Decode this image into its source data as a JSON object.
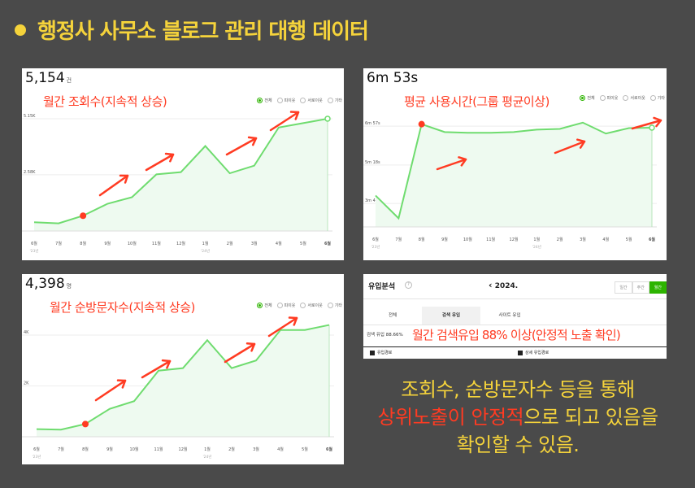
{
  "title": "행정사 사무소 블로그 관리 대행 데이터",
  "legend": [
    "전체",
    "피이웃",
    "서로이웃",
    "기타"
  ],
  "months": [
    "6월",
    "7월",
    "8월",
    "9월",
    "10월",
    "11월",
    "12월",
    "1월",
    "2월",
    "3월",
    "4월",
    "5월",
    "6월"
  ],
  "year_marks": {
    "first": "'23년",
    "second": "'24년"
  },
  "panels": {
    "views": {
      "value": "5,154",
      "unit": "건",
      "caption": "월간 조회수(지속적 상승)",
      "yticks": [
        "5.15K",
        "2.58K"
      ]
    },
    "avg_time": {
      "value": "6m 53s",
      "caption": "평균 사용시간(그룹 평균이상)",
      "yticks": [
        "6m 57s",
        "5m 18s",
        "3m 40s"
      ]
    },
    "visitors": {
      "value": "4,398",
      "unit": "명",
      "caption": "월간 순방문자수(지속적 상승)",
      "yticks": [
        "4K",
        "2K"
      ]
    },
    "traffic": {
      "title": "유입분석",
      "help": "?",
      "year": "2024.",
      "period_buttons": [
        "일간",
        "주간",
        "월간"
      ],
      "tabs": [
        "전체",
        "검색 유입",
        "사이트 유입"
      ],
      "summary": "검색 유입 88.66%",
      "caption": "월간 검색유입 88% 이상(안정적 노출 확인)",
      "footer": [
        "유입경로",
        "상세 유입경로"
      ]
    }
  },
  "chart_data": [
    {
      "type": "line",
      "title": "",
      "categories": [
        "6월",
        "7월",
        "8월",
        "9월",
        "10월",
        "11월",
        "12월",
        "1월",
        "2월",
        "3월",
        "4월",
        "5월",
        "6월"
      ],
      "series": [
        {
          "values": [
            400,
            350,
            700,
            1250,
            1550,
            2600,
            2700,
            3900,
            2650,
            3000,
            4750,
            4950,
            5154
          ]
        }
      ],
      "ylim": [
        0,
        5600
      ],
      "ytick_values": [
        5154,
        2580
      ],
      "color": "#6fdc6f"
    },
    {
      "type": "line",
      "title": "",
      "categories": [
        "6월",
        "7월",
        "8월",
        "9월",
        "10월",
        "11월",
        "12월",
        "1월",
        "2월",
        "3월",
        "4월",
        "5월",
        "6월"
      ],
      "series": [
        {
          "values": [
            240,
            182,
            422,
            402,
            400,
            400,
            402,
            408,
            410,
            426,
            398,
            412,
            413
          ]
        }
      ],
      "ylim": [
        160,
        440
      ],
      "ytick_values": [
        417,
        318,
        220
      ],
      "unit": "seconds",
      "color": "#6fdc6f"
    },
    {
      "type": "line",
      "title": "",
      "categories": [
        "6월",
        "7월",
        "8월",
        "9월",
        "10월",
        "11월",
        "12월",
        "1월",
        "2월",
        "3월",
        "4월",
        "5월",
        "6월"
      ],
      "series": [
        {
          "values": [
            300,
            280,
            500,
            1100,
            1400,
            2600,
            2700,
            3800,
            2700,
            3000,
            4200,
            4200,
            4398
          ]
        }
      ],
      "ylim": [
        0,
        4800
      ],
      "ytick_values": [
        4000,
        2000
      ],
      "color": "#6fdc6f"
    }
  ],
  "bottom_text": {
    "line1": "조회수, 순방문자수 등을 통해",
    "line2_highlight": "상위노출이 안정적",
    "line2_rest": "으로 되고 있음을",
    "line3": "확인할 수 있음."
  },
  "colors": {
    "background": "#4a4a4a",
    "accent_yellow": "#f5d33b",
    "accent_red": "#ff3b22",
    "line_green": "#6fdc6f",
    "naver_green": "#2db400"
  }
}
